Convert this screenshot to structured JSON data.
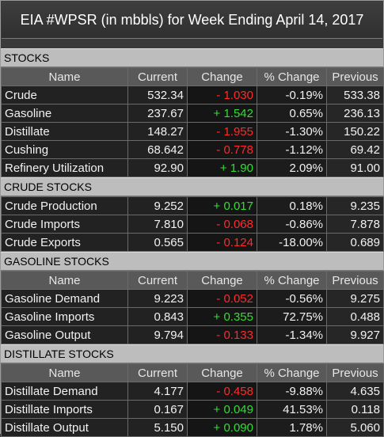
{
  "title": "EIA #WPSR (in mbbls) for Week Ending April 14, 2017",
  "columns": {
    "name": "Name",
    "current": "Current",
    "change": "Change",
    "pct": "% Change",
    "previous": "Previous"
  },
  "colors": {
    "up": "#33dd33",
    "down": "#ff2a2a"
  },
  "sections": [
    {
      "title": "STOCKS",
      "show_header": true,
      "rows": [
        {
          "name": "Crude",
          "current": "532.34",
          "change": "- 1.030",
          "dir": "down",
          "pct": "-0.19%",
          "previous": "533.38"
        },
        {
          "name": "Gasoline",
          "current": "237.67",
          "change": "+ 1.542",
          "dir": "up",
          "pct": "0.65%",
          "previous": "236.13"
        },
        {
          "name": "Distillate",
          "current": "148.27",
          "change": "- 1.955",
          "dir": "down",
          "pct": "-1.30%",
          "previous": "150.22"
        },
        {
          "name": "Cushing",
          "current": "68.642",
          "change": "- 0.778",
          "dir": "down",
          "pct": "-1.12%",
          "previous": "69.42"
        },
        {
          "name": "Refinery Utilization",
          "current": "92.90",
          "change": "+ 1.90",
          "dir": "up",
          "pct": "2.09%",
          "previous": "91.00"
        }
      ]
    },
    {
      "title": "CRUDE STOCKS",
      "show_header": false,
      "rows": [
        {
          "name": "Crude Production",
          "current": "9.252",
          "change": "+ 0.017",
          "dir": "up",
          "pct": "0.18%",
          "previous": "9.235"
        },
        {
          "name": "Crude Imports",
          "current": "7.810",
          "change": "- 0.068",
          "dir": "down",
          "pct": "-0.86%",
          "previous": "7.878"
        },
        {
          "name": "Crude Exports",
          "current": "0.565",
          "change": "- 0.124",
          "dir": "down",
          "pct": "-18.00%",
          "previous": "0.689"
        }
      ]
    },
    {
      "title": "GASOLINE STOCKS",
      "show_header": true,
      "rows": [
        {
          "name": "Gasoline Demand",
          "current": "9.223",
          "change": "- 0.052",
          "dir": "down",
          "pct": "-0.56%",
          "previous": "9.275"
        },
        {
          "name": "Gasoline Imports",
          "current": "0.843",
          "change": "+ 0.355",
          "dir": "up",
          "pct": "72.75%",
          "previous": "0.488"
        },
        {
          "name": "Gasoline Output",
          "current": "9.794",
          "change": "- 0.133",
          "dir": "down",
          "pct": "-1.34%",
          "previous": "9.927"
        }
      ]
    },
    {
      "title": "DISTILLATE STOCKS",
      "show_header": true,
      "rows": [
        {
          "name": "Distillate Demand",
          "current": "4.177",
          "change": "- 0.458",
          "dir": "down",
          "pct": "-9.88%",
          "previous": "4.635"
        },
        {
          "name": "Distillate Imports",
          "current": "0.167",
          "change": "+ 0.049",
          "dir": "up",
          "pct": "41.53%",
          "previous": "0.118"
        },
        {
          "name": "Distillate Output",
          "current": "5.150",
          "change": "+ 0.090",
          "dir": "up",
          "pct": "1.78%",
          "previous": "5.060"
        }
      ]
    }
  ]
}
